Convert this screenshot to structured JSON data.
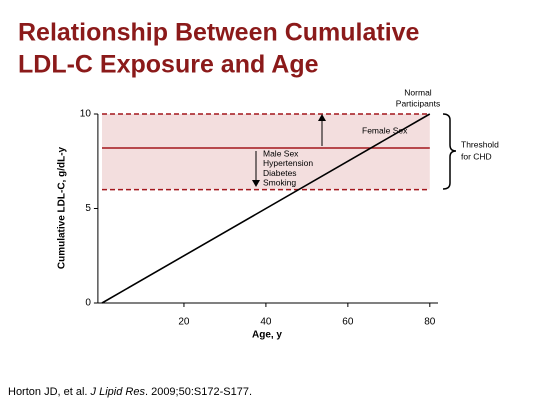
{
  "chart_data": {
    "type": "line",
    "title": [
      "Relationship Between Cumulative",
      "LDL-C Exposure and Age"
    ],
    "x_label": "Age, y",
    "y_label": "Cumulative LDL-C, g/dL-y",
    "xlim": [
      -1,
      82
    ],
    "xticks": [
      20,
      40,
      60,
      80
    ],
    "ylim": [
      0,
      10
    ],
    "yticks": [
      0,
      5,
      10
    ],
    "series": [
      {
        "color": "#000000",
        "x": [
          0,
          80
        ],
        "values": [
          0,
          10
        ]
      }
    ],
    "band": [
      6,
      10
    ],
    "band_color": "#f3dede",
    "reference_color": "#a3171c",
    "reference_lines": [
      {
        "value": 10,
        "style": "dashed"
      },
      {
        "value": 8.2,
        "style": "solid"
      },
      {
        "value": 6,
        "style": "dashed"
      }
    ],
    "annotations": {
      "normal": [
        "Normal",
        "Participants"
      ],
      "female": "Female Sex",
      "risks": [
        "Male Sex",
        "Hypertension",
        "Diabetes",
        "Smoking"
      ],
      "threshold": [
        "Threshold",
        "for CHD"
      ]
    },
    "source": [
      "Horton JD, et al. ",
      "J Lipid Res",
      ". 2009;50:S172-S177."
    ]
  }
}
